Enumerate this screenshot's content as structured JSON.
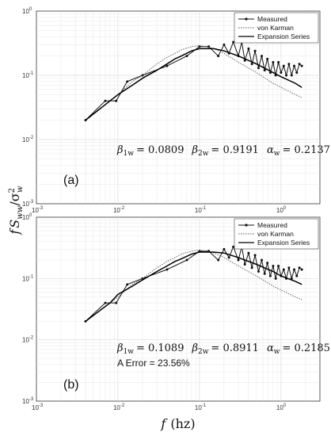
{
  "figure": {
    "xlabel_var": "f",
    "xlabel_unit": "(hz)",
    "ylabel_var": "f",
    "ylabel_mid": "S",
    "ylabel_sub": "ww",
    "ylabel_den": "/σ",
    "ylabel_den_sup": "2",
    "ylabel_den_sub": "w"
  },
  "colors": {
    "measured": "#111111",
    "von_karman": "#555555",
    "expansion": "#000000",
    "grid": "#dcdcdc"
  },
  "chart_data": [
    {
      "type": "line",
      "panel_label": "(a)",
      "xscale": "log",
      "yscale": "log",
      "xlim": [
        0.001,
        3
      ],
      "ylim": [
        0.001,
        1
      ],
      "grid": true,
      "legend_position": "top-right",
      "x_ticks": [
        {
          "base": "10",
          "exp": "-3"
        },
        {
          "base": "10",
          "exp": "-2"
        },
        {
          "base": "10",
          "exp": "-1"
        },
        {
          "base": "10",
          "exp": "0"
        }
      ],
      "y_ticks": [
        {
          "base": "10",
          "exp": "-3"
        },
        {
          "base": "10",
          "exp": "-2"
        },
        {
          "base": "10",
          "exp": "-1"
        },
        {
          "base": "10",
          "exp": "0"
        }
      ],
      "params": {
        "b1_sym": "β",
        "b1_sub": "1w",
        "b1_val": "= 0.0809",
        "b2_sym": "β",
        "b2_sub": "2w",
        "b2_val": "= 0.9191",
        "a_sym": "α",
        "a_sub": "w",
        "a_val": "= 0.2137"
      },
      "series": [
        {
          "name": "Measured",
          "style": "solid-dots",
          "x": [
            0.004,
            0.007,
            0.0095,
            0.013,
            0.02,
            0.04,
            0.07,
            0.1,
            0.13,
            0.17,
            0.2,
            0.23,
            0.26,
            0.3,
            0.33,
            0.36,
            0.4,
            0.44,
            0.48,
            0.53,
            0.58,
            0.63,
            0.68,
            0.74,
            0.8,
            0.86,
            0.93,
            1.0,
            1.08,
            1.16,
            1.25,
            1.35,
            1.45,
            1.56,
            1.68,
            1.8
          ],
          "y": [
            0.02,
            0.04,
            0.04,
            0.08,
            0.1,
            0.14,
            0.2,
            0.28,
            0.28,
            0.2,
            0.3,
            0.22,
            0.33,
            0.2,
            0.33,
            0.17,
            0.26,
            0.15,
            0.24,
            0.13,
            0.2,
            0.12,
            0.18,
            0.11,
            0.16,
            0.1,
            0.16,
            0.11,
            0.14,
            0.1,
            0.15,
            0.1,
            0.14,
            0.11,
            0.15,
            0.14
          ]
        },
        {
          "name": "von Karman",
          "style": "dotted",
          "x": [
            0.004,
            0.006,
            0.008,
            0.01,
            0.015,
            0.02,
            0.03,
            0.04,
            0.05,
            0.06,
            0.08,
            0.1,
            0.12,
            0.15,
            0.2,
            0.3,
            0.5,
            0.8,
            1.0,
            1.5,
            1.8
          ],
          "y": [
            0.02,
            0.03,
            0.04,
            0.05,
            0.08,
            0.1,
            0.15,
            0.19,
            0.22,
            0.25,
            0.28,
            0.29,
            0.28,
            0.26,
            0.22,
            0.16,
            0.11,
            0.075,
            0.065,
            0.05,
            0.045
          ]
        },
        {
          "name": "Expansion Series",
          "style": "solid",
          "x": [
            0.004,
            0.006,
            0.008,
            0.01,
            0.015,
            0.02,
            0.03,
            0.04,
            0.05,
            0.06,
            0.08,
            0.1,
            0.12,
            0.15,
            0.2,
            0.3,
            0.5,
            0.8,
            1.0,
            1.5,
            1.8
          ],
          "y": [
            0.02,
            0.03,
            0.04,
            0.05,
            0.07,
            0.09,
            0.12,
            0.15,
            0.18,
            0.2,
            0.24,
            0.26,
            0.26,
            0.26,
            0.24,
            0.2,
            0.15,
            0.11,
            0.095,
            0.075,
            0.065
          ]
        }
      ]
    },
    {
      "type": "line",
      "panel_label": "(b)",
      "xscale": "log",
      "yscale": "log",
      "xlim": [
        0.001,
        3
      ],
      "ylim": [
        0.001,
        1
      ],
      "grid": true,
      "legend_position": "top-right",
      "x_ticks": [
        {
          "base": "10",
          "exp": "-3"
        },
        {
          "base": "10",
          "exp": "-2"
        },
        {
          "base": "10",
          "exp": "-1"
        },
        {
          "base": "10",
          "exp": "0"
        }
      ],
      "y_ticks": [
        {
          "base": "10",
          "exp": "-3"
        },
        {
          "base": "10",
          "exp": "-2"
        },
        {
          "base": "10",
          "exp": "-1"
        },
        {
          "base": "10",
          "exp": "0"
        }
      ],
      "params": {
        "b1_sym": "β",
        "b1_sub": "1w",
        "b1_val": "= 0.1089",
        "b2_sym": "β",
        "b2_sub": "2w",
        "b2_val": "= 0.8911",
        "a_sym": "α",
        "a_sub": "w",
        "a_val": "= 0.2185"
      },
      "note": "A Error = 23.56%",
      "series": [
        {
          "name": "Measured",
          "style": "solid-dots",
          "x": [
            0.004,
            0.007,
            0.0095,
            0.013,
            0.02,
            0.04,
            0.07,
            0.1,
            0.13,
            0.17,
            0.2,
            0.23,
            0.26,
            0.3,
            0.33,
            0.36,
            0.4,
            0.44,
            0.48,
            0.53,
            0.58,
            0.63,
            0.68,
            0.74,
            0.8,
            0.86,
            0.93,
            1.0,
            1.08,
            1.16,
            1.25,
            1.35,
            1.45,
            1.56,
            1.68,
            1.8
          ],
          "y": [
            0.02,
            0.04,
            0.04,
            0.08,
            0.1,
            0.14,
            0.2,
            0.28,
            0.28,
            0.2,
            0.3,
            0.22,
            0.33,
            0.2,
            0.33,
            0.17,
            0.26,
            0.15,
            0.24,
            0.13,
            0.2,
            0.12,
            0.18,
            0.11,
            0.16,
            0.1,
            0.16,
            0.11,
            0.14,
            0.1,
            0.15,
            0.1,
            0.14,
            0.11,
            0.15,
            0.14
          ]
        },
        {
          "name": "von Karman",
          "style": "dotted",
          "x": [
            0.004,
            0.006,
            0.008,
            0.01,
            0.015,
            0.02,
            0.03,
            0.04,
            0.05,
            0.06,
            0.08,
            0.1,
            0.12,
            0.15,
            0.2,
            0.3,
            0.5,
            0.8,
            1.0,
            1.5,
            1.8
          ],
          "y": [
            0.02,
            0.03,
            0.04,
            0.05,
            0.08,
            0.1,
            0.15,
            0.19,
            0.22,
            0.25,
            0.28,
            0.29,
            0.28,
            0.26,
            0.22,
            0.16,
            0.11,
            0.075,
            0.065,
            0.05,
            0.045
          ]
        },
        {
          "name": "Expansion Series",
          "style": "solid",
          "x": [
            0.004,
            0.006,
            0.008,
            0.01,
            0.015,
            0.02,
            0.03,
            0.04,
            0.05,
            0.06,
            0.08,
            0.1,
            0.12,
            0.15,
            0.2,
            0.3,
            0.5,
            0.8,
            1.0,
            1.5,
            1.8
          ],
          "y": [
            0.02,
            0.03,
            0.04,
            0.055,
            0.075,
            0.095,
            0.13,
            0.16,
            0.19,
            0.21,
            0.25,
            0.27,
            0.27,
            0.27,
            0.26,
            0.22,
            0.17,
            0.13,
            0.11,
            0.09,
            0.08
          ]
        }
      ]
    }
  ]
}
